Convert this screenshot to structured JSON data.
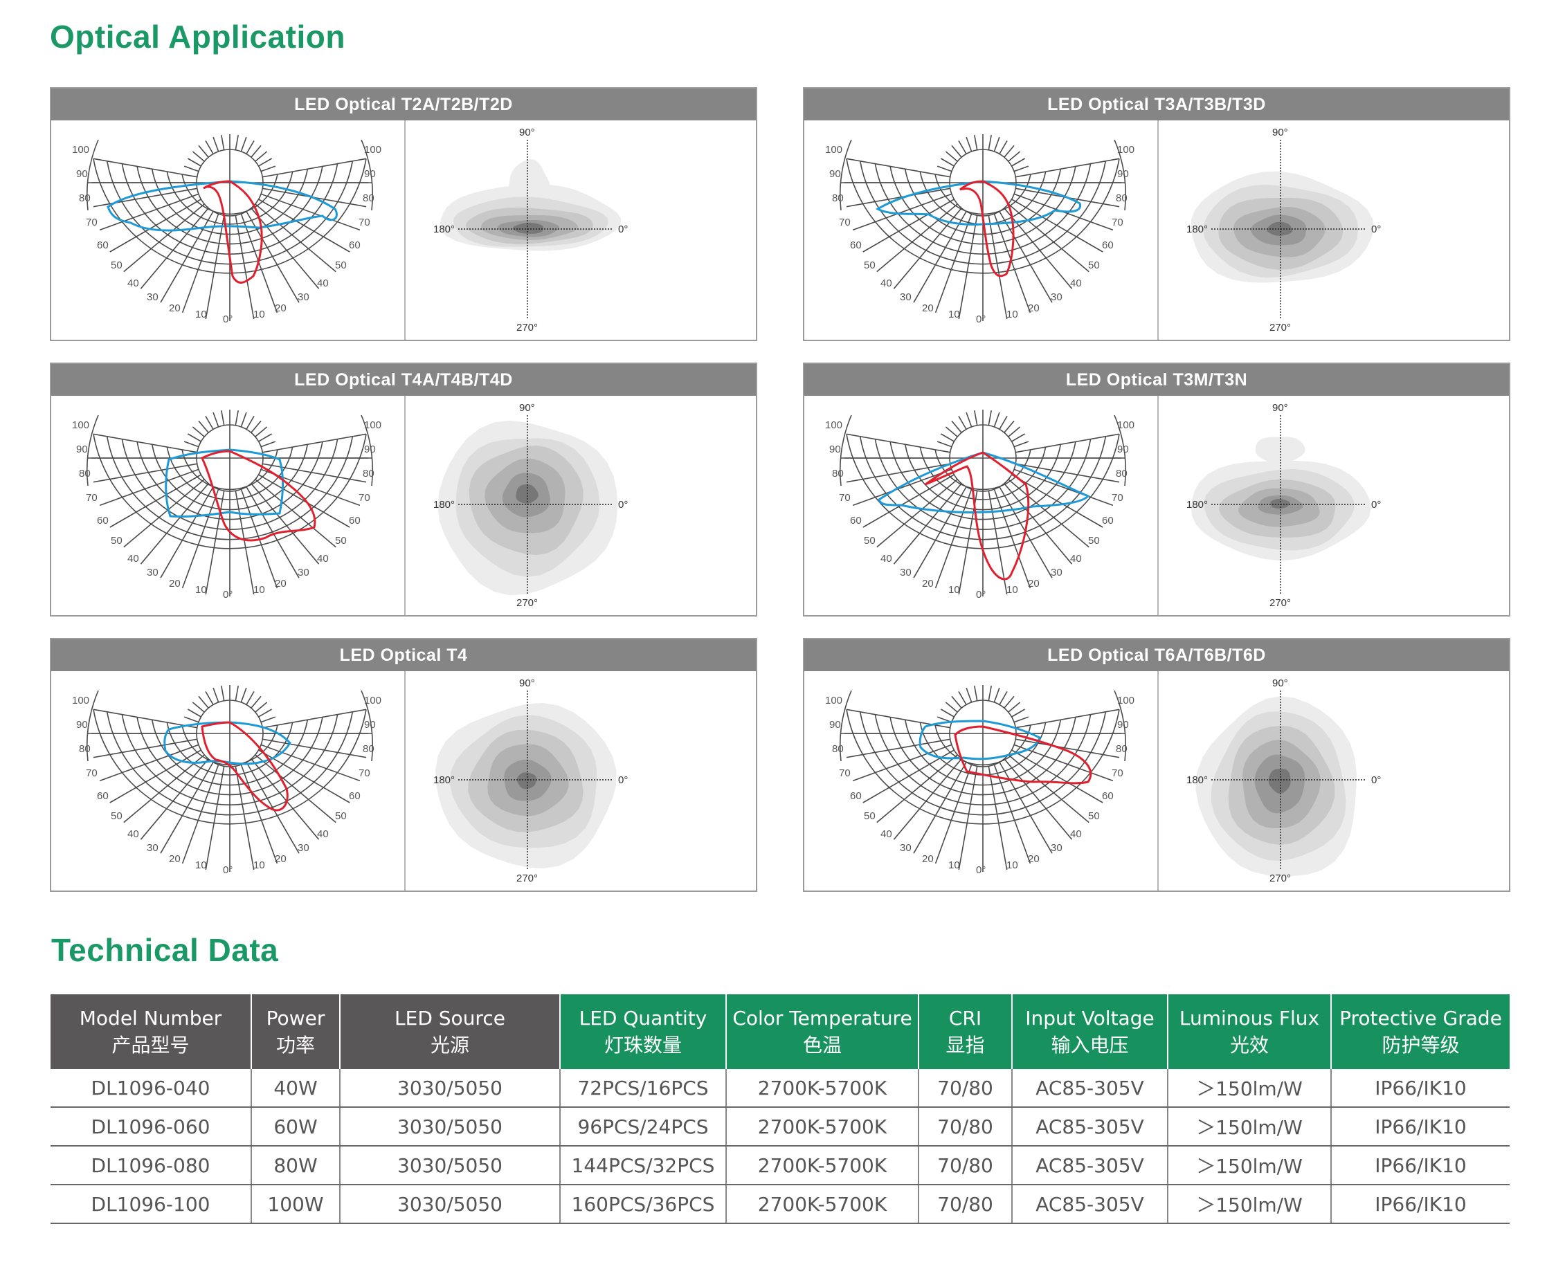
{
  "sections": {
    "optical_title": "Optical Application",
    "technical_title": "Technical Data"
  },
  "polar_labels": {
    "left": [
      "100",
      "90",
      "80",
      "70",
      "60",
      "50",
      "40",
      "30",
      "20",
      "10"
    ],
    "right": [
      "100",
      "90",
      "80",
      "70",
      "60",
      "50",
      "40",
      "30",
      "20",
      "10"
    ],
    "zero": "0°"
  },
  "iso_labels": {
    "top": "90°",
    "left": "180°",
    "right": "0°",
    "bottom": "270°"
  },
  "panels": [
    {
      "title": "LED Optical T2A/T2B/T2D",
      "type": "t2"
    },
    {
      "title": "LED Optical T3A/T3B/T3D",
      "type": "t3"
    },
    {
      "title": "LED Optical T4A/T4B/T4D",
      "type": "t4"
    },
    {
      "title": "LED Optical T3M/T3N",
      "type": "t3m"
    },
    {
      "title": "LED Optical T4",
      "type": "t4s"
    },
    {
      "title": "LED Optical T6A/T6B/T6D",
      "type": "t6"
    }
  ],
  "colors": {
    "accent": "#1a9866",
    "header_dark": "#595757",
    "header_green": "#17925e",
    "panel_header": "#858585",
    "curve_red": "#e0202e",
    "curve_blue": "#1e9ad6"
  },
  "table": {
    "headers": [
      {
        "en": "Model Number",
        "cn": "产品型号",
        "style": "dark"
      },
      {
        "en": "Power",
        "cn": "功率",
        "style": "dark"
      },
      {
        "en": "LED Source",
        "cn": "光源",
        "style": "dark"
      },
      {
        "en": "LED Quantity",
        "cn": "灯珠数量",
        "style": "green"
      },
      {
        "en": "Color Temperature",
        "cn": "色温",
        "style": "green"
      },
      {
        "en": "CRI",
        "cn": "显指",
        "style": "green"
      },
      {
        "en": "Input Voltage",
        "cn": "输入电压",
        "style": "green"
      },
      {
        "en": "Luminous Flux",
        "cn": "光效",
        "style": "green"
      },
      {
        "en": "Protective Grade",
        "cn": "防护等级",
        "style": "green"
      }
    ],
    "rows": [
      [
        "DL1096-040",
        "40W",
        "3030/5050",
        "72PCS/16PCS",
        "2700K-5700K",
        "70/80",
        "AC85-305V",
        "＞150lm/W",
        "IP66/IK10"
      ],
      [
        "DL1096-060",
        "60W",
        "3030/5050",
        "96PCS/24PCS",
        "2700K-5700K",
        "70/80",
        "AC85-305V",
        "＞150lm/W",
        "IP66/IK10"
      ],
      [
        "DL1096-080",
        "80W",
        "3030/5050",
        "144PCS/32PCS",
        "2700K-5700K",
        "70/80",
        "AC85-305V",
        "＞150lm/W",
        "IP66/IK10"
      ],
      [
        "DL1096-100",
        "100W",
        "3030/5050",
        "160PCS/36PCS",
        "2700K-5700K",
        "70/80",
        "AC85-305V",
        "＞150lm/W",
        "IP66/IK10"
      ]
    ]
  }
}
